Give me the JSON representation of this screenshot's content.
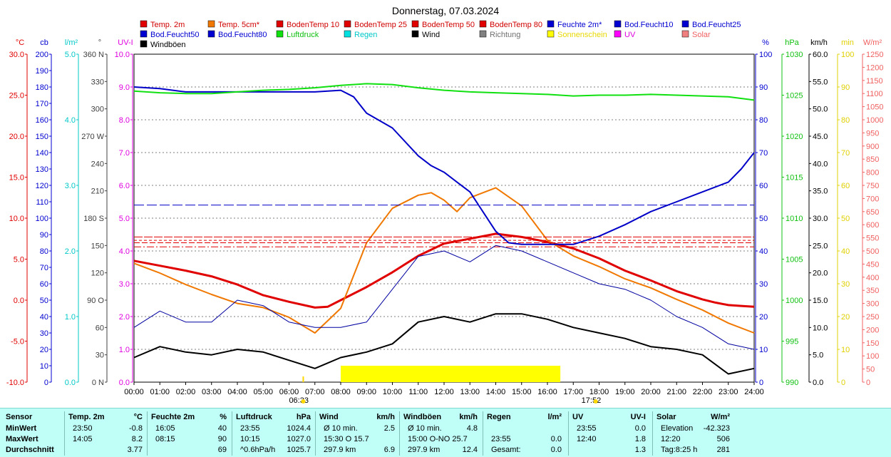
{
  "title": "Donnerstag, 07.03.2024",
  "colors": {
    "temp2m": "#e00000",
    "temp5cm": "#f07800",
    "boden": "#e00000",
    "feuchte": "#0000d0",
    "bodfeucht": "#0000c0",
    "luftdruck": "#10e010",
    "regen": "#00e0e0",
    "wind": "#000000",
    "richtung": "#808080",
    "sonne": "#ffff00",
    "uv": "#ff00ff",
    "solar": "#f08080"
  },
  "legend": [
    {
      "label": "Temp. 2m",
      "color": "#e00000"
    },
    {
      "label": "Temp. 5cm*",
      "color": "#f07800"
    },
    {
      "label": "BodenTemp 10",
      "color": "#e00000"
    },
    {
      "label": "BodenTemp 25",
      "color": "#e00000"
    },
    {
      "label": "BodenTemp 50",
      "color": "#e00000"
    },
    {
      "label": "BodenTemp 80",
      "color": "#e00000"
    },
    {
      "label": "Feuchte 2m*",
      "color": "#0000d0"
    },
    {
      "label": "Bod.Feucht10",
      "color": "#0000d0"
    },
    {
      "label": "Bod.Feucht25",
      "color": "#0000d0"
    },
    {
      "label": "Bod.Feucht50",
      "color": "#0000d0"
    },
    {
      "label": "Bod.Feucht80",
      "color": "#0000d0"
    },
    {
      "label": "Luftdruck",
      "color": "#10e010"
    },
    {
      "label": "Regen",
      "color": "#00e0e0"
    },
    {
      "label": "Wind",
      "color": "#000000"
    },
    {
      "label": "Richtung",
      "color": "#808080"
    },
    {
      "label": "Sonnenschein",
      "color": "#ffff00"
    },
    {
      "label": "UV",
      "color": "#ff00ff"
    },
    {
      "label": "Solar",
      "color": "#f08080"
    },
    {
      "label": "Windböen",
      "color": "#000000"
    }
  ],
  "left_axes": [
    {
      "unit": "°C",
      "color": "#e00000",
      "ticks": [
        "30.0",
        "25.0",
        "20.0",
        "15.0",
        "10.0",
        "5.0",
        "0.0",
        "-5.0",
        "-10.0"
      ]
    },
    {
      "unit": "cb",
      "color": "#0000d0",
      "ticks": [
        "200",
        "190",
        "180",
        "170",
        "160",
        "150",
        "140",
        "130",
        "120",
        "110",
        "100",
        "90",
        "80",
        "70",
        "60",
        "50",
        "40",
        "30",
        "20",
        "10",
        "0"
      ]
    },
    {
      "unit": "l/m²",
      "color": "#00c8c8",
      "ticks": [
        "5.0",
        "4.0",
        "3.0",
        "2.0",
        "1.0",
        "0.0"
      ]
    },
    {
      "unit": "°",
      "color": "#404040",
      "ticks": [
        "360 N",
        "330",
        "300",
        "270 W",
        "240",
        "210",
        "180 S",
        "150",
        "120",
        "90 O",
        "60",
        "30",
        "0 N"
      ]
    },
    {
      "unit": "UV-I",
      "color": "#e000e0",
      "ticks": [
        "10.0",
        "9.0",
        "8.0",
        "7.0",
        "6.0",
        "5.0",
        "4.0",
        "3.0",
        "2.0",
        "1.0",
        "0.0"
      ]
    }
  ],
  "right_axes": [
    {
      "unit": "%",
      "color": "#0000d0",
      "ticks": [
        "100",
        "90",
        "80",
        "70",
        "60",
        "50",
        "40",
        "30",
        "20",
        "10",
        "0"
      ]
    },
    {
      "unit": "hPa",
      "color": "#10c010",
      "ticks": [
        "1030",
        "1025",
        "1020",
        "1015",
        "1010",
        "1005",
        "1000",
        "995",
        "990"
      ]
    },
    {
      "unit": "km/h",
      "color": "#000000",
      "ticks": [
        "60.0",
        "55.0",
        "50.0",
        "45.0",
        "40.0",
        "35.0",
        "30.0",
        "25.0",
        "20.0",
        "15.0",
        "10.0",
        "5.0",
        "0.0"
      ]
    },
    {
      "unit": "min",
      "color": "#e0d000",
      "ticks": [
        "100",
        "90",
        "80",
        "70",
        "60",
        "50",
        "40",
        "30",
        "20",
        "10",
        "0"
      ]
    },
    {
      "unit": "W/m²",
      "color": "#f06060",
      "ticks": [
        "1250",
        "1200",
        "1150",
        "1100",
        "1050",
        "1000",
        "950",
        "900",
        "850",
        "800",
        "750",
        "700",
        "650",
        "600",
        "550",
        "500",
        "450",
        "400",
        "350",
        "300",
        "250",
        "200",
        "150",
        "100",
        "50",
        "0"
      ]
    }
  ],
  "x_ticks": [
    "00:00",
    "01:00",
    "02:00",
    "03:00",
    "04:00",
    "05:00",
    "06:00",
    "07:00",
    "08:00",
    "09:00",
    "10:00",
    "11:00",
    "12:00",
    "13:00",
    "14:00",
    "15:00",
    "16:00",
    "17:00",
    "18:00",
    "19:00",
    "20:00",
    "21:00",
    "22:00",
    "23:00",
    "24:00"
  ],
  "sunrise": "06:33",
  "sunset": "17:52",
  "chart_data": {
    "type": "line",
    "title": "Donnerstag, 07.03.2024",
    "x_range_hours": [
      0,
      24
    ],
    "series": [
      {
        "name": "Temp. 2m",
        "unit": "°C",
        "x": [
          0,
          1,
          2,
          3,
          4,
          5,
          6,
          7,
          7.5,
          8,
          9,
          10,
          11,
          12,
          13,
          14,
          15,
          16,
          17,
          18,
          19,
          20,
          21,
          22,
          22.5,
          23,
          23.5,
          24
        ],
        "values": [
          4.8,
          4.2,
          3.6,
          2.9,
          1.9,
          0.6,
          -0.2,
          -0.9,
          -0.8,
          0,
          1.6,
          3.4,
          5.4,
          6.9,
          7.5,
          8.1,
          7.7,
          7.1,
          6.3,
          5.1,
          3.6,
          2.4,
          1.1,
          0.1,
          -0.3,
          -0.6,
          -0.7,
          -0.8
        ]
      },
      {
        "name": "Temp. 5cm*",
        "unit": "°C",
        "x": [
          0,
          1,
          2,
          3,
          4,
          5,
          6,
          7,
          8,
          8.5,
          9,
          10,
          11,
          11.5,
          12,
          12.5,
          13,
          14,
          15,
          16,
          17,
          18,
          19,
          20,
          21,
          22,
          23,
          24
        ],
        "values": [
          4.5,
          3.3,
          1.9,
          0.7,
          -0.4,
          -0.9,
          -2.1,
          -4.0,
          -1.0,
          3.0,
          7.0,
          11.2,
          12.8,
          13.1,
          12.2,
          10.8,
          12.5,
          13.7,
          11.5,
          7.3,
          5.4,
          4.1,
          2.6,
          1.5,
          0.1,
          -1.2,
          -2.8,
          -4.0
        ]
      },
      {
        "name": "BodenTemp 10",
        "unit": "°C",
        "x": [
          0,
          24
        ],
        "values": [
          6.5,
          6.5
        ]
      },
      {
        "name": "BodenTemp 25",
        "unit": "°C",
        "x": [
          0,
          24
        ],
        "values": [
          7.0,
          7.0
        ]
      },
      {
        "name": "BodenTemp 50",
        "unit": "°C",
        "x": [
          0,
          24
        ],
        "values": [
          7.3,
          7.3
        ]
      },
      {
        "name": "BodenTemp 80",
        "unit": "°C",
        "x": [
          0,
          24
        ],
        "values": [
          7.7,
          7.7
        ]
      },
      {
        "name": "Feuchte 2m*",
        "unit": "%",
        "x": [
          0,
          1,
          2,
          3,
          4,
          5,
          6,
          7,
          8,
          8.5,
          9,
          10,
          11,
          11.5,
          12,
          12.5,
          13,
          13.5,
          14,
          14.5,
          15,
          16,
          17,
          18,
          19,
          20,
          21,
          22,
          23,
          23.5,
          24
        ],
        "values": [
          90,
          89.5,
          88.5,
          88.5,
          88.5,
          88.5,
          88.5,
          88.5,
          89,
          87,
          82,
          77.5,
          69,
          66,
          64,
          61,
          58,
          52,
          46,
          42.5,
          42,
          42,
          42,
          44.5,
          48,
          52,
          55,
          58,
          61,
          65,
          70
        ]
      },
      {
        "name": "Bod.Feucht",
        "unit": "%",
        "x": [
          0,
          24
        ],
        "values": [
          54,
          54
        ]
      },
      {
        "name": "Luftdruck",
        "unit": "hPa",
        "x": [
          0,
          1,
          2,
          3,
          4,
          5,
          6,
          7,
          8,
          9,
          10,
          11,
          12,
          13,
          14,
          15,
          16,
          17,
          18,
          19,
          20,
          21,
          22,
          23,
          24
        ],
        "values": [
          1025.5,
          1025.3,
          1025.2,
          1025.2,
          1025.4,
          1025.6,
          1025.7,
          1025.9,
          1026.2,
          1026.4,
          1026.3,
          1025.9,
          1025.6,
          1025.4,
          1025.3,
          1025.2,
          1025.1,
          1024.9,
          1025.0,
          1025.0,
          1025.1,
          1025.0,
          1024.9,
          1024.8,
          1024.4
        ]
      },
      {
        "name": "Wind",
        "unit": "km/h",
        "x": [
          0,
          1,
          2,
          3,
          4,
          5,
          6,
          7,
          8,
          9,
          10,
          11,
          12,
          13,
          14,
          15,
          16,
          17,
          18,
          19,
          20,
          21,
          22,
          23,
          24
        ],
        "values": [
          4.5,
          6.5,
          5.5,
          5.0,
          6.0,
          5.5,
          4.0,
          2.5,
          4.5,
          5.5,
          7.0,
          11.0,
          12.0,
          11.0,
          12.5,
          12.5,
          11.5,
          10.0,
          9.0,
          8.0,
          6.5,
          6.0,
          5.0,
          1.5,
          2.5
        ]
      },
      {
        "name": "Windböen",
        "unit": "km/h",
        "x": [
          0,
          1,
          2,
          3,
          4,
          5,
          6,
          7,
          8,
          9,
          10,
          11,
          12,
          13,
          14,
          15,
          16,
          17,
          18,
          19,
          20,
          21,
          22,
          23,
          24
        ],
        "values": [
          10,
          13,
          11,
          11,
          15,
          14,
          11,
          10,
          10,
          11,
          17,
          23,
          24,
          22,
          25,
          24,
          22,
          20,
          18,
          17,
          15,
          12,
          10,
          7,
          6
        ]
      },
      {
        "name": "Sonnenschein",
        "unit": "min",
        "x": [
          8,
          16.5
        ],
        "values": [
          5,
          5
        ]
      }
    ]
  },
  "stats": {
    "headers": [
      {
        "label": "Sensor"
      },
      {
        "label": "Temp. 2m",
        "unit": "°C"
      },
      {
        "label": "Feuchte 2m",
        "unit": "%"
      },
      {
        "label": "Luftdruck",
        "unit": "hPa"
      },
      {
        "label": "Wind",
        "unit": "km/h"
      },
      {
        "label": "Windböen",
        "unit": "km/h"
      },
      {
        "label": "Regen",
        "unit": "l/m²"
      },
      {
        "label": "UV",
        "unit": "UV-I"
      },
      {
        "label": "Solar",
        "unit": "W/m²"
      }
    ],
    "rows": [
      {
        "label": "MinWert",
        "cells": [
          [
            "23:50",
            "-0.8"
          ],
          [
            "16:05",
            "40"
          ],
          [
            "23:55",
            "1024.4"
          ],
          [
            "Ø 10 min.",
            "2.5"
          ],
          [
            "Ø 10 min.",
            "4.8"
          ],
          [
            "",
            ""
          ],
          [
            "23:55",
            "0.0"
          ],
          [
            "Elevation",
            "-42.323"
          ]
        ]
      },
      {
        "label": "MaxWert",
        "cells": [
          [
            "14:05",
            "8.2"
          ],
          [
            "08:15",
            "90"
          ],
          [
            "10:15",
            "1027.0"
          ],
          [
            "15:30   O 15.7",
            ""
          ],
          [
            "15:00   O-NO 25.7",
            ""
          ],
          [
            "23:55",
            "0.0"
          ],
          [
            "12:40",
            "1.8"
          ],
          [
            "12:20",
            "506"
          ]
        ]
      },
      {
        "label": "Durchschnitt",
        "cells": [
          [
            "",
            "3.77"
          ],
          [
            "",
            "69"
          ],
          [
            "^0.6hPa/h",
            "1025.7"
          ],
          [
            "297.9 km",
            "6.9"
          ],
          [
            "297.9 km",
            "12.4"
          ],
          [
            "Gesamt:",
            "0.0"
          ],
          [
            "",
            "1.3"
          ],
          [
            "Tag:8:25 h",
            "281"
          ]
        ]
      }
    ]
  }
}
